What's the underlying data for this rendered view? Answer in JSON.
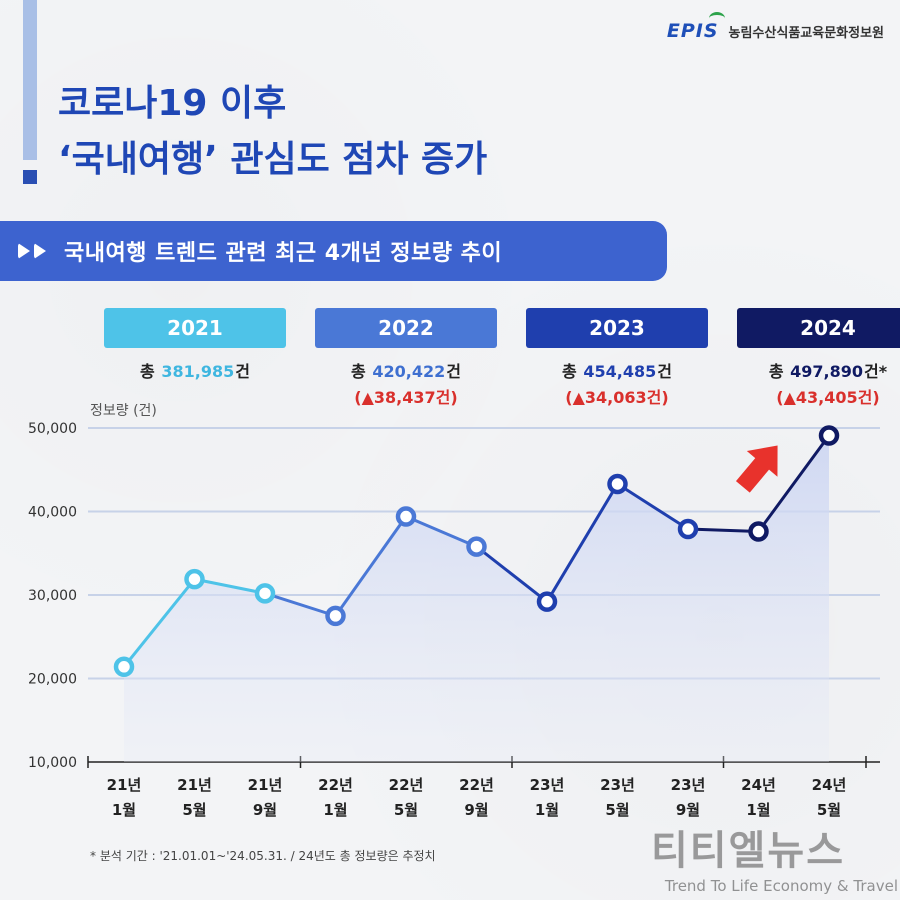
{
  "org": {
    "logo": "EPIS",
    "name": "농림수산식품교육문화정보원"
  },
  "headline": {
    "line1": "코로나19 이후",
    "line2": "‘국내여행’ 관심도 점차 증가"
  },
  "subtitle": "국내여행 트렌드 관련 최근 4개년 정보량 추이",
  "years": [
    {
      "label": "2021",
      "color": "#4ec3e8",
      "total_prefix": "총 ",
      "total_value": "381,985",
      "total_suffix": "건",
      "value_color": "#3fb6e0",
      "delta": ""
    },
    {
      "label": "2022",
      "color": "#4a78d6",
      "total_prefix": "총 ",
      "total_value": "420,422",
      "total_suffix": "건",
      "value_color": "#3e6fd0",
      "delta": "(▲38,437건)"
    },
    {
      "label": "2023",
      "color": "#1f3fae",
      "total_prefix": "총 ",
      "total_value": "454,485",
      "total_suffix": "건",
      "value_color": "#1f3fae",
      "delta": "(▲34,063건)"
    },
    {
      "label": "2024",
      "color": "#101a63",
      "total_prefix": "총 ",
      "total_value": "497,890",
      "total_suffix": "건*",
      "value_color": "#101a63",
      "delta": "(▲43,405건)"
    }
  ],
  "chart_data": {
    "type": "line",
    "ylabel": "정보량 (건)",
    "ylim": [
      10000,
      50000
    ],
    "yticks": [
      "10,000",
      "20,000",
      "30,000",
      "40,000",
      "50,000"
    ],
    "x_year_labels": [
      "21년",
      "21년",
      "21년",
      "22년",
      "22년",
      "22년",
      "23년",
      "23년",
      "23년",
      "24년",
      "24년"
    ],
    "x_month_labels": [
      "1월",
      "5월",
      "9월",
      "1월",
      "5월",
      "9월",
      "1월",
      "5월",
      "9월",
      "1월",
      "5월"
    ],
    "values": [
      21400,
      31900,
      30200,
      27500,
      39400,
      35800,
      29200,
      43300,
      37900,
      37600,
      49100
    ],
    "segment_colors": [
      "#4ec3e8",
      "#4ec3e8",
      "#4ec3e8",
      "#4a78d6",
      "#4a78d6",
      "#4a78d6",
      "#1f3fae",
      "#1f3fae",
      "#1f3fae",
      "#101a63",
      "#101a63"
    ],
    "grid": true,
    "annotation": "red-up-arrow"
  },
  "footnote": "* 분석 기간 : '21.01.01~'24.05.31. / 24년도 총 정보량은 추정치",
  "watermark": {
    "main": "티티엘뉴스",
    "sub": "Trend To Life Economy & Travel"
  }
}
